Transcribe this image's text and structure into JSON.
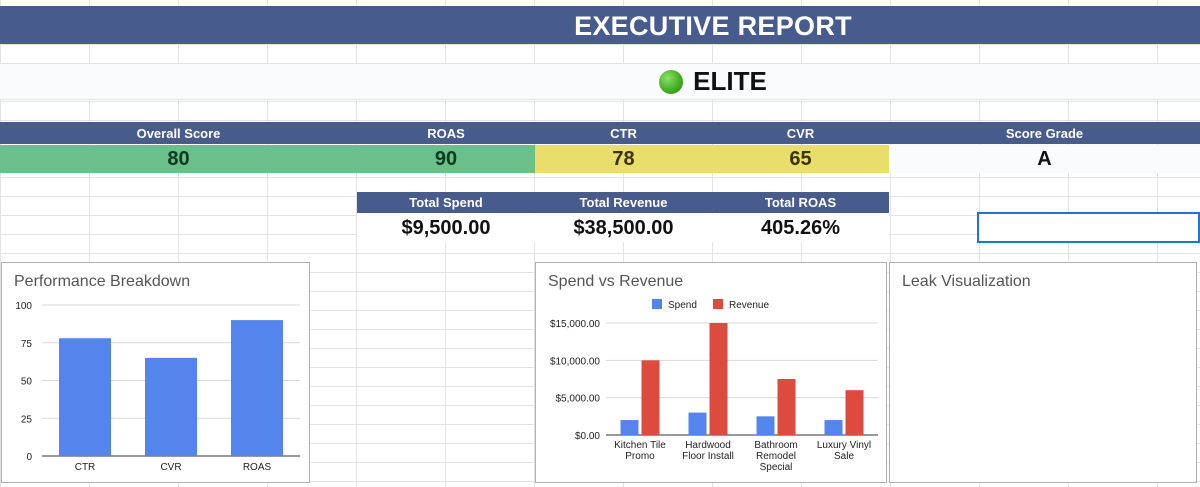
{
  "report": {
    "title": "EXECUTIVE REPORT",
    "tier_label": "ELITE",
    "tier_icon": "green-circle-icon"
  },
  "scores": {
    "overall_label": "Overall Score",
    "overall_value": "80",
    "roas_label": "ROAS",
    "roas_value": "90",
    "ctr_label": "CTR",
    "ctr_value": "78",
    "cvr_label": "CVR",
    "cvr_value": "65",
    "grade_label": "Score Grade",
    "grade_value": "A"
  },
  "totals": {
    "spend_label": "Total Spend",
    "spend_value": "$9,500.00",
    "revenue_label": "Total Revenue",
    "revenue_value": "$38,500.00",
    "roas_label": "Total ROAS",
    "roas_value": "405.26%"
  },
  "colors": {
    "header_bg": "#475c8c",
    "score_green": "#6abf8b",
    "score_yellow": "#e9dd6c",
    "bar_blue": "#5485ec",
    "bar_red": "#dd4b3e"
  },
  "charts": {
    "performance": {
      "title": "Performance Breakdown",
      "chart_data": {
        "type": "bar",
        "categories": [
          "CTR",
          "CVR",
          "ROAS"
        ],
        "values": [
          78,
          65,
          90
        ],
        "ylim": [
          0,
          100
        ],
        "yticks": [
          "0",
          "25",
          "50",
          "75",
          "100"
        ],
        "grid": true
      }
    },
    "spend_revenue": {
      "title": "Spend vs Revenue",
      "chart_data": {
        "type": "bar",
        "categories": [
          "Kitchen Tile Promo",
          "Hardwood Floor Install",
          "Bathroom Remodel Special",
          "Luxury Vinyl Sale"
        ],
        "category_lines": [
          [
            "Kitchen Tile",
            "Promo"
          ],
          [
            "Hardwood",
            "Floor Install"
          ],
          [
            "Bathroom",
            "Remodel",
            "Special"
          ],
          [
            "Luxury Vinyl",
            "Sale"
          ]
        ],
        "series": [
          {
            "name": "Spend",
            "values": [
              2000,
              3000,
              2500,
              2000
            ]
          },
          {
            "name": "Revenue",
            "values": [
              10000,
              15000,
              7500,
              6000
            ]
          }
        ],
        "ylim": [
          0,
          15000
        ],
        "yticks": [
          "$0.00",
          "$5,000.00",
          "$10,000.00",
          "$15,000.00"
        ],
        "legend": "top",
        "grid": true
      }
    },
    "leak": {
      "title": "Leak Visualization"
    }
  }
}
